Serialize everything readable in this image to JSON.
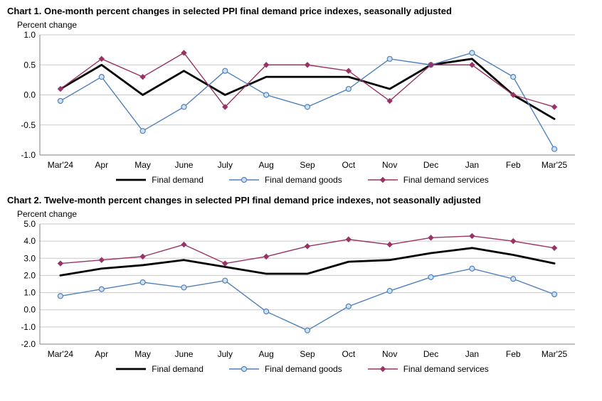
{
  "chart_data": [
    {
      "type": "line",
      "title": "Chart 1. One-month percent changes in selected PPI final demand price indexes, seasonally adjusted",
      "axis_caption": "Percent change",
      "categories": [
        "Mar'24",
        "Apr",
        "May",
        "June",
        "July",
        "Aug",
        "Sep",
        "Oct",
        "Nov",
        "Dec",
        "Jan",
        "Feb",
        "Mar'25"
      ],
      "ylim": [
        -1.0,
        1.0
      ],
      "ytick_step": 0.5,
      "grid": true,
      "legend_position": "bottom",
      "series": [
        {
          "name": "Final demand",
          "color": "#000000",
          "line_width": 2.8,
          "marker": "none",
          "marker_fill": "none",
          "values": [
            0.1,
            0.5,
            0.0,
            0.4,
            0.0,
            0.3,
            0.3,
            0.3,
            0.1,
            0.5,
            0.6,
            0.0,
            -0.4
          ]
        },
        {
          "name": "Final demand goods",
          "color": "#4f81bd",
          "line_width": 1.4,
          "marker": "circle",
          "marker_fill": "#cfe2f3",
          "values": [
            -0.1,
            0.3,
            -0.6,
            -0.2,
            0.4,
            0.0,
            -0.2,
            0.1,
            0.6,
            0.5,
            0.7,
            0.3,
            -0.9
          ]
        },
        {
          "name": "Final demand services",
          "color": "#993366",
          "line_width": 1.4,
          "marker": "diamond",
          "marker_fill": "#993366",
          "values": [
            0.1,
            0.6,
            0.3,
            0.7,
            -0.2,
            0.5,
            0.5,
            0.4,
            -0.1,
            0.5,
            0.5,
            0.0,
            -0.2
          ]
        }
      ]
    },
    {
      "type": "line",
      "title": "Chart 2. Twelve-month percent changes in selected PPI final demand price indexes, not seasonally adjusted",
      "axis_caption": "Percent change",
      "categories": [
        "Mar'24",
        "Apr",
        "May",
        "June",
        "July",
        "Aug",
        "Sep",
        "Oct",
        "Nov",
        "Dec",
        "Jan",
        "Feb",
        "Mar'25"
      ],
      "ylim": [
        -2.0,
        5.0
      ],
      "ytick_step": 1.0,
      "grid": true,
      "legend_position": "bottom",
      "series": [
        {
          "name": "Final demand",
          "color": "#000000",
          "line_width": 2.8,
          "marker": "none",
          "marker_fill": "none",
          "values": [
            2.0,
            2.4,
            2.6,
            2.9,
            2.5,
            2.1,
            2.1,
            2.8,
            2.9,
            3.3,
            3.6,
            3.2,
            2.7
          ]
        },
        {
          "name": "Final demand goods",
          "color": "#4f81bd",
          "line_width": 1.4,
          "marker": "circle",
          "marker_fill": "#cfe2f3",
          "values": [
            0.8,
            1.2,
            1.6,
            1.3,
            1.7,
            -0.1,
            -1.2,
            0.2,
            1.1,
            1.9,
            2.4,
            1.8,
            0.9
          ]
        },
        {
          "name": "Final demand services",
          "color": "#993366",
          "line_width": 1.4,
          "marker": "diamond",
          "marker_fill": "#993366",
          "values": [
            2.7,
            2.9,
            3.1,
            3.8,
            2.7,
            3.1,
            3.7,
            4.1,
            3.8,
            4.2,
            4.3,
            4.0,
            3.6
          ]
        }
      ]
    }
  ],
  "style": {
    "grid_color": "#c9c9c9",
    "axis_color": "#808080"
  }
}
